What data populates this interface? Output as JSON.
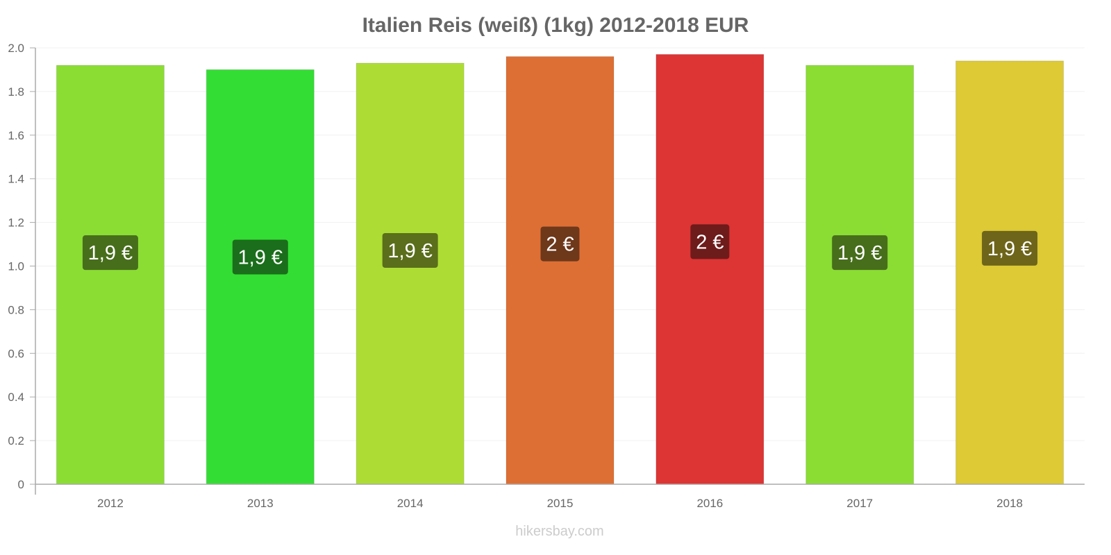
{
  "chart_data": {
    "type": "bar",
    "title": "Italien Reis (weiß) (1kg) 2012-2018 EUR",
    "categories": [
      "2012",
      "2013",
      "2014",
      "2015",
      "2016",
      "2017",
      "2018"
    ],
    "values": [
      1.92,
      1.9,
      1.93,
      1.96,
      1.97,
      1.92,
      1.94
    ],
    "data_labels": [
      "1,9 €",
      "1,9 €",
      "1,9 €",
      "2 €",
      "2 €",
      "1,9 €",
      "1,9 €"
    ],
    "colors": [
      "#8bdd34",
      "#34dd34",
      "#addd34",
      "#dd6f34",
      "#dd3434",
      "#8bdd34",
      "#ddca34"
    ],
    "label_colors": [
      "#476e1b",
      "#1b6e1b",
      "#5a6e1b",
      "#6e381b",
      "#6e1b1b",
      "#476e1b",
      "#6e651b"
    ],
    "yticks": [
      "0",
      "0.2",
      "0.4",
      "0.6",
      "0.8",
      "1.0",
      "1.2",
      "1.4",
      "1.6",
      "1.8",
      "2.0"
    ],
    "ylim": [
      0,
      2.0
    ],
    "xlabel": "",
    "ylabel": "",
    "grid": true
  },
  "watermark": "hikersbay.com"
}
